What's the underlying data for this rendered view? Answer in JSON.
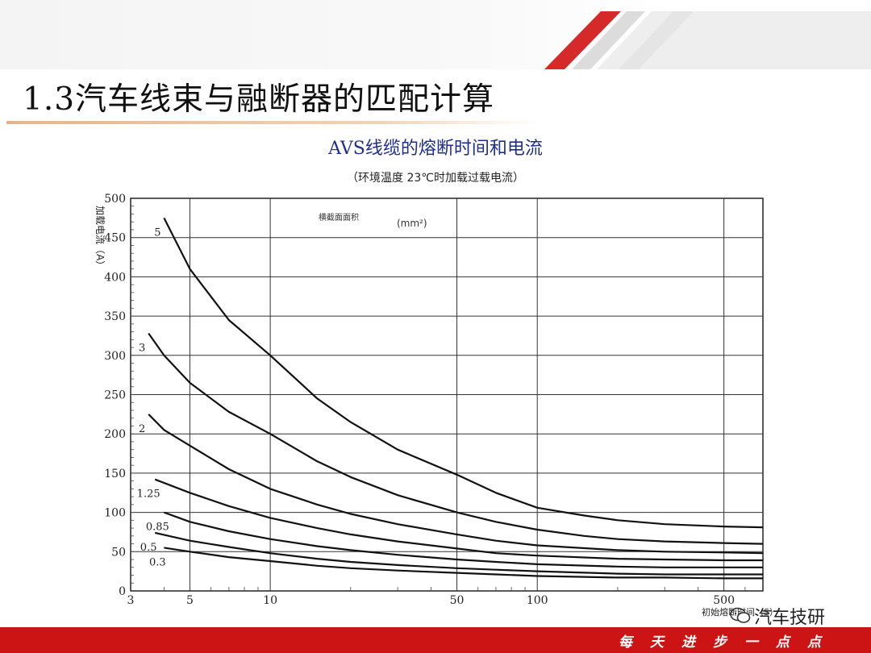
{
  "slide": {
    "title": "1.3汽车线束与融断器的匹配计算",
    "footer_text": "每天进步一点点",
    "watermark": "汽车技研"
  },
  "colors": {
    "accent_red": "#cc1414",
    "chart_title_blue": "#1f2e8c"
  },
  "chart_data": {
    "type": "line",
    "title": "AVS线缆的熔断时间和电流",
    "subtitle": "（环境温度 23℃时加载过载电流）",
    "ylabel": "加载电流（A）",
    "xlabel": "初始熔断时间（S）",
    "legend_title": "横截面面积",
    "legend_unit": "(mm²)",
    "xscale": "log",
    "xlim": [
      3,
      700
    ],
    "ylim": [
      0,
      500
    ],
    "x_ticks": [
      5,
      10,
      50,
      100,
      500
    ],
    "y_ticks": [
      0,
      50,
      100,
      150,
      200,
      250,
      300,
      350,
      400,
      450,
      500
    ],
    "grid": true,
    "series": [
      {
        "name": "5",
        "x": [
          4,
          5,
          7,
          10,
          15,
          20,
          30,
          50,
          70,
          100,
          150,
          200,
          300,
          500,
          700
        ],
        "y": [
          475,
          410,
          345,
          300,
          245,
          215,
          180,
          148,
          125,
          106,
          96,
          90,
          85,
          82,
          81
        ]
      },
      {
        "name": "3",
        "x": [
          3.5,
          4,
          5,
          7,
          10,
          15,
          20,
          30,
          50,
          70,
          100,
          150,
          200,
          300,
          500,
          700
        ],
        "y": [
          328,
          300,
          265,
          228,
          200,
          165,
          145,
          122,
          100,
          88,
          78,
          70,
          66,
          63,
          61,
          60
        ]
      },
      {
        "name": "2",
        "x": [
          3.5,
          4,
          5,
          7,
          10,
          15,
          20,
          30,
          50,
          70,
          100,
          200,
          300,
          500,
          700
        ],
        "y": [
          225,
          205,
          185,
          155,
          130,
          110,
          98,
          85,
          72,
          64,
          58,
          52,
          50,
          49,
          48
        ]
      },
      {
        "name": "1.25",
        "x": [
          3.7,
          5,
          7,
          10,
          15,
          20,
          30,
          50,
          70,
          100,
          200,
          300,
          500,
          700
        ],
        "y": [
          142,
          125,
          108,
          93,
          80,
          72,
          63,
          54,
          48,
          45,
          41,
          40,
          39,
          39
        ]
      },
      {
        "name": "0.85",
        "x": [
          4,
          5,
          7,
          10,
          15,
          20,
          30,
          50,
          70,
          100,
          200,
          300,
          500,
          700
        ],
        "y": [
          100,
          88,
          76,
          66,
          57,
          52,
          46,
          40,
          37,
          34,
          31,
          30,
          30,
          30
        ]
      },
      {
        "name": "0.5",
        "x": [
          3.7,
          5,
          7,
          10,
          15,
          20,
          30,
          50,
          70,
          100,
          200,
          300,
          500,
          700
        ],
        "y": [
          74,
          64,
          56,
          48,
          41,
          37,
          33,
          29,
          27,
          25,
          22,
          21,
          21,
          21
        ]
      },
      {
        "name": "0.3",
        "x": [
          4,
          5,
          7,
          10,
          15,
          20,
          30,
          50,
          70,
          100,
          200,
          300,
          500,
          700
        ],
        "y": [
          55,
          50,
          43,
          38,
          32,
          29,
          26,
          23,
          21,
          19,
          17,
          17,
          16,
          16
        ]
      }
    ]
  }
}
